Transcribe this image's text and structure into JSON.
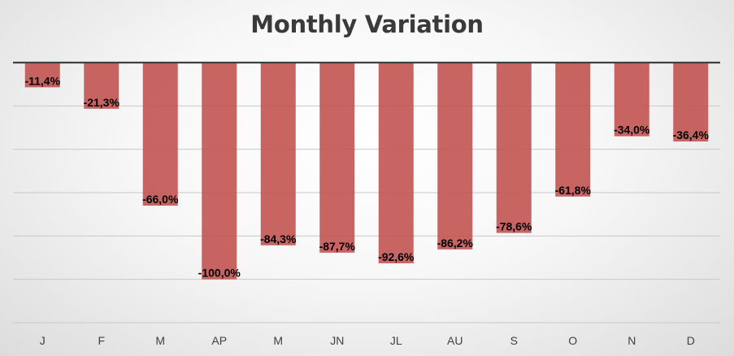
{
  "chart_data": {
    "type": "bar",
    "title": "Monthly Variation",
    "categories": [
      "J",
      "F",
      "M",
      "AP",
      "M",
      "JN",
      "JL",
      "AU",
      "S",
      "O",
      "N",
      "D"
    ],
    "values": [
      -11.4,
      -21.3,
      -66.0,
      -100.0,
      -84.3,
      -87.7,
      -92.6,
      -86.2,
      -78.6,
      -61.8,
      -34.0,
      -36.4
    ],
    "data_labels": [
      "-11,4%",
      "-21,3%",
      "-66,0%",
      "-100,0%",
      "-84,3%",
      "-87,7%",
      "-92,6%",
      "-86,2%",
      "-78,6%",
      "-61,8%",
      "-34,0%",
      "-36,4%"
    ],
    "ylim": [
      -120,
      0
    ],
    "grid": true,
    "legend": "none",
    "bar_color": "#c0504d",
    "axis_color": "#404040"
  }
}
